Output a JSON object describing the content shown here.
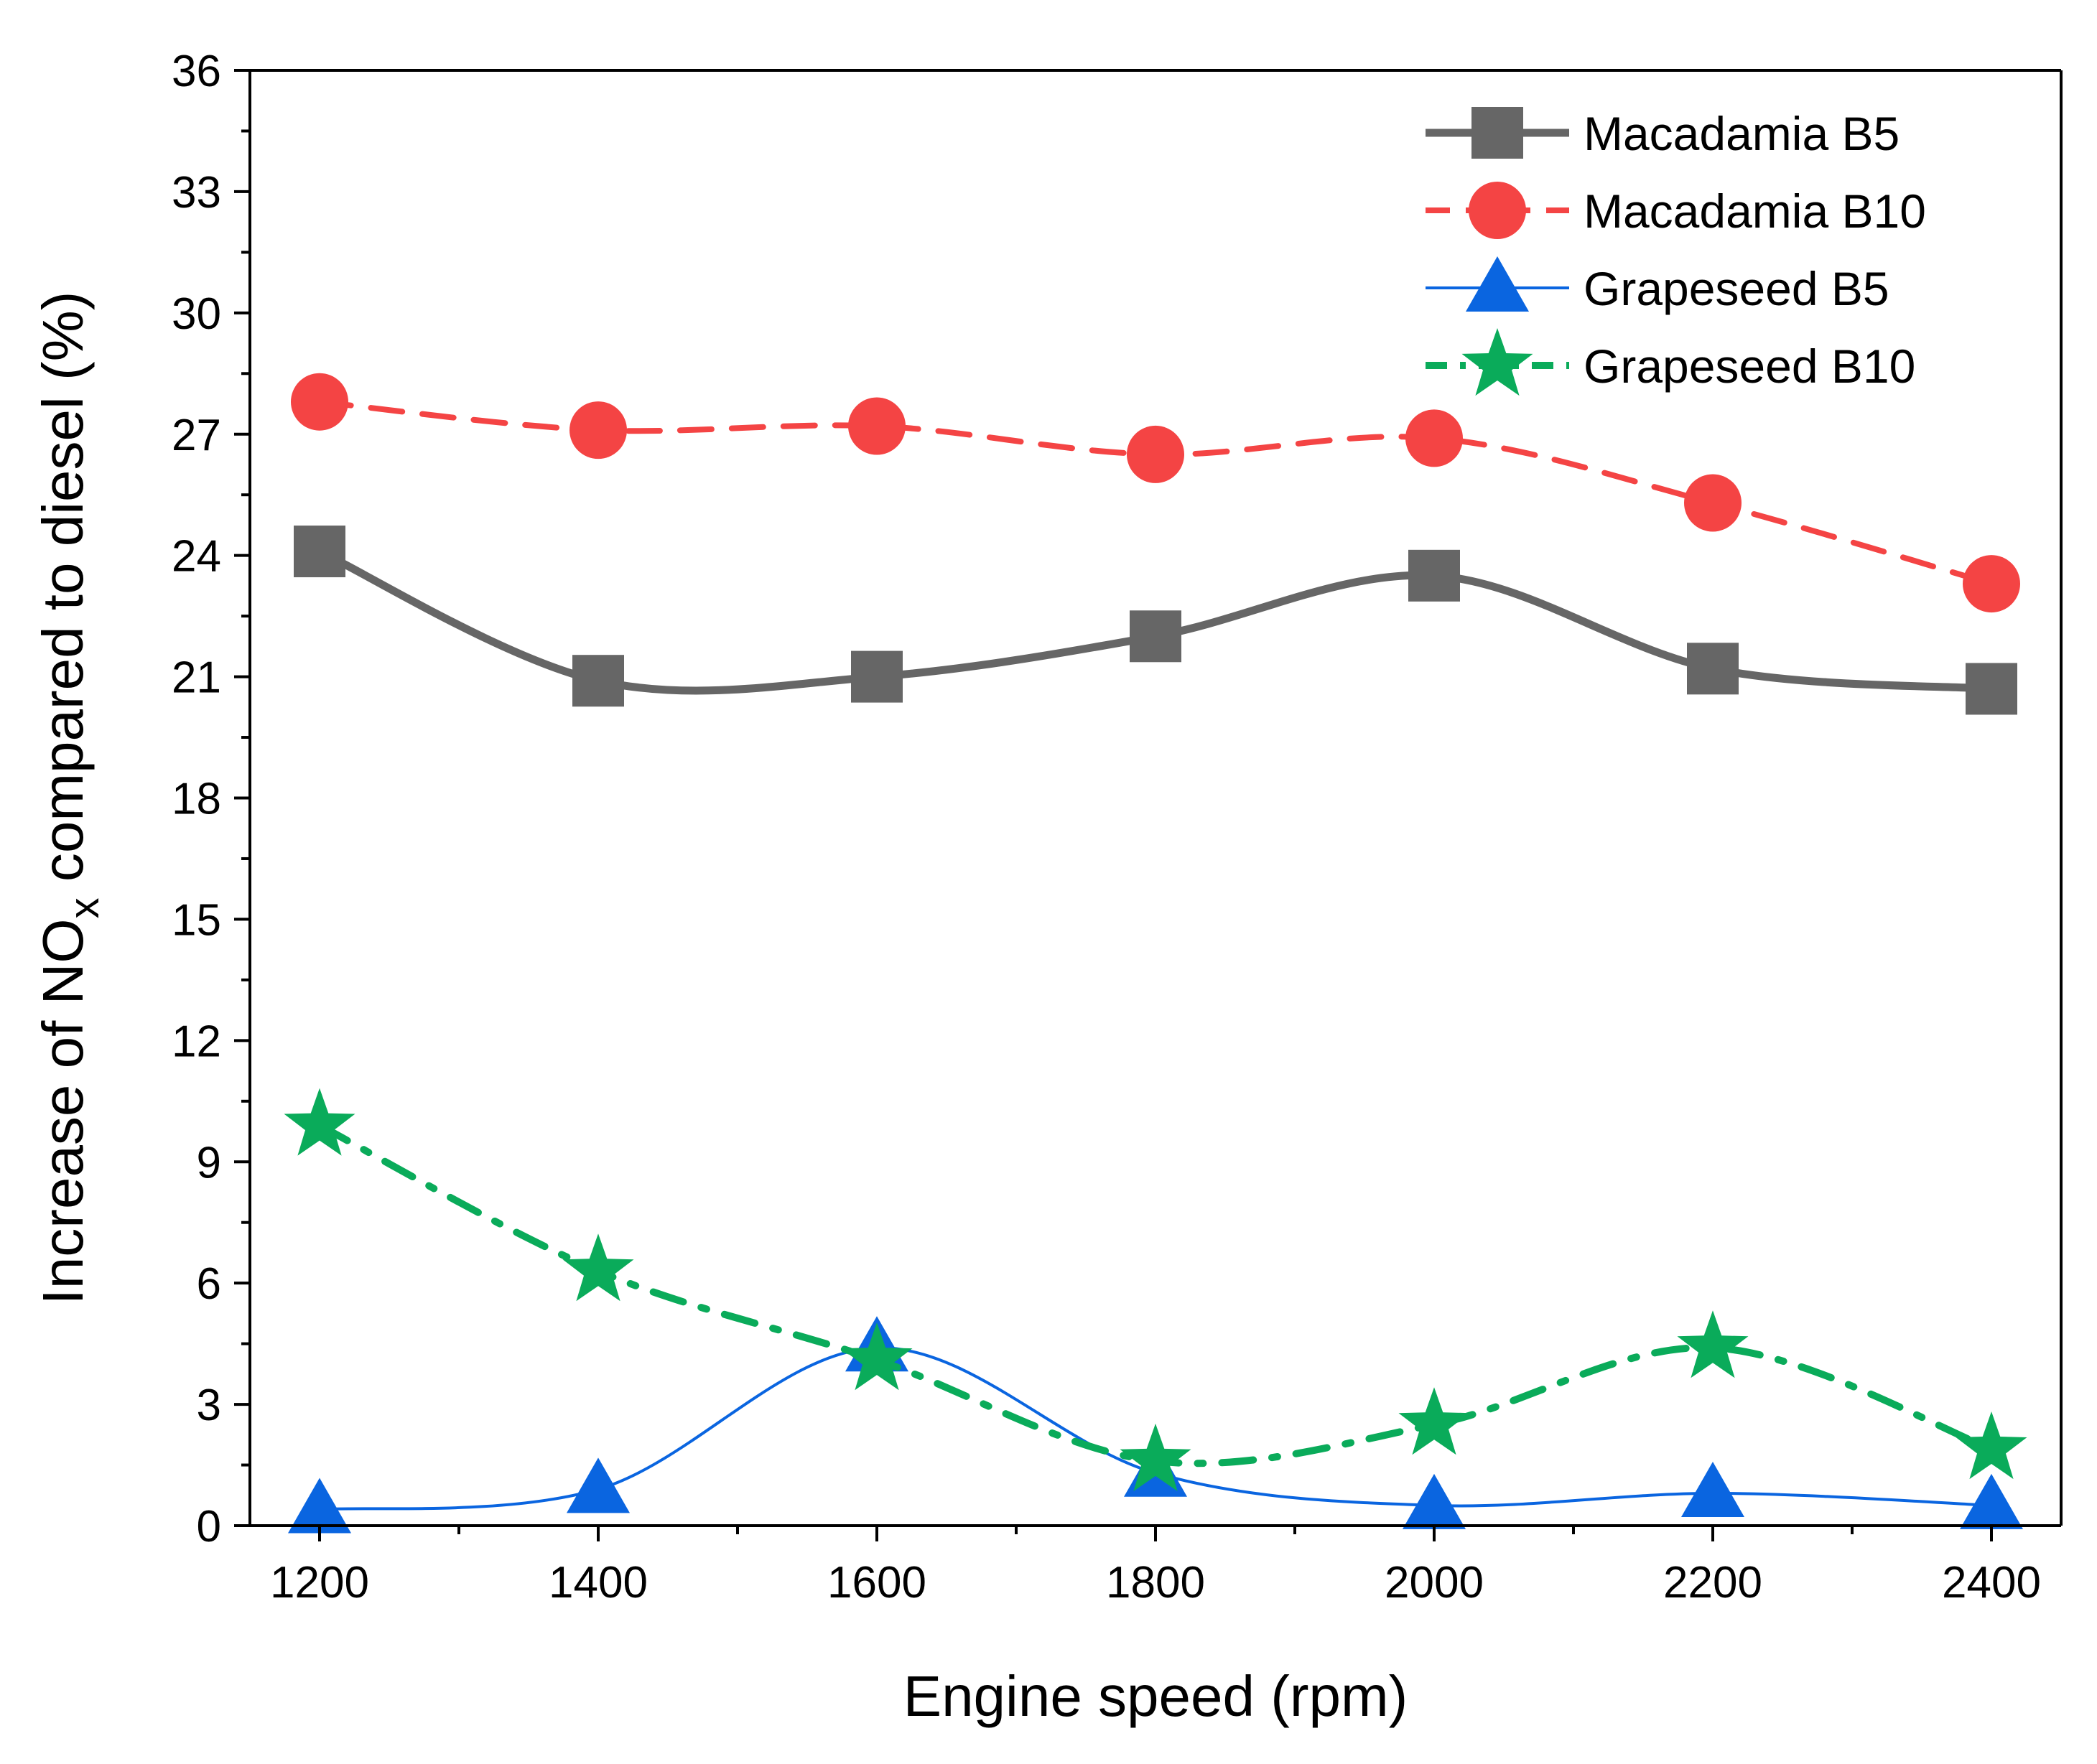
{
  "chart_data": {
    "type": "line",
    "title": "",
    "xlabel": "Engine speed (rpm)",
    "ylabel": {
      "prefix": "Increase of NO",
      "subscript": "x",
      "suffix": " compared to diesel (%)"
    },
    "x": [
      1200,
      1400,
      1600,
      1800,
      2000,
      2200,
      2400
    ],
    "xlim": [
      1150,
      2450
    ],
    "ylim": [
      0,
      36
    ],
    "xticks": [
      1200,
      1400,
      1600,
      1800,
      2000,
      2200,
      2400
    ],
    "yticks": [
      0,
      3,
      6,
      9,
      12,
      15,
      18,
      21,
      24,
      27,
      30,
      33,
      36
    ],
    "legend_position": "top-right",
    "series": [
      {
        "name": "Macadamia B5",
        "values": [
          24.1,
          20.9,
          21.0,
          22.0,
          23.5,
          21.2,
          20.7
        ],
        "color": "#666666",
        "marker": "square",
        "dash": "solid",
        "smooth": true
      },
      {
        "name": "Macadamia B10",
        "values": [
          27.8,
          27.1,
          27.2,
          26.5,
          26.9,
          25.3,
          23.3
        ],
        "color": "#f44444",
        "marker": "circle",
        "dash": "dash",
        "smooth": true
      },
      {
        "name": "Grapeseed B5",
        "values": [
          0.4,
          0.9,
          4.4,
          1.3,
          0.5,
          0.8,
          0.5
        ],
        "color": "#0a65e0",
        "marker": "triangle",
        "dash": "solid-thin",
        "smooth": true
      },
      {
        "name": "Grapeseed B10",
        "values": [
          9.9,
          6.3,
          4.1,
          1.6,
          2.5,
          4.4,
          1.9
        ],
        "color": "#0aab5a",
        "marker": "star",
        "dash": "dashdot",
        "smooth": true
      }
    ]
  }
}
